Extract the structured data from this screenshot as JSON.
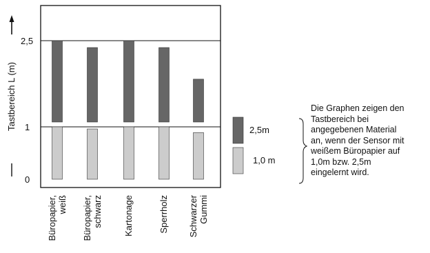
{
  "chart_data": {
    "type": "bar",
    "ylabel": "Tastbereich L (m)",
    "y_ticks": [
      {
        "value": 0,
        "label": "0"
      },
      {
        "value": 1,
        "label": "1"
      },
      {
        "value": 2.5,
        "label": "2,5"
      }
    ],
    "ylim": [
      0,
      2.5
    ],
    "grid": "horizontal lines at 1 and 2,5",
    "categories": [
      [
        "Büropapier,",
        "weiß"
      ],
      [
        "Büropapier,",
        "schwarz"
      ],
      [
        "Kartonage"
      ],
      [
        "Sperrholz"
      ],
      [
        "Schwarzer",
        "Gummi"
      ]
    ],
    "series": [
      {
        "name": "2,5m",
        "color": "#666666",
        "range": [
          1,
          2.5
        ],
        "values": [
          2.5,
          2.38,
          2.5,
          2.38,
          1.83
        ]
      },
      {
        "name": "1,0 m",
        "color": "#cccccc",
        "range": [
          0,
          1
        ],
        "values": [
          1.0,
          0.96,
          1.0,
          1.0,
          0.89
        ]
      }
    ],
    "legend_position": "right"
  },
  "note": {
    "lines": [
      "Die Graphen zeigen den",
      "Tastbereich bei",
      "angegebenen Material",
      "an, wenn der Sensor mit",
      "weißem Büropapier auf",
      "1,0m bzw. 2,5m",
      "eingelernt wird."
    ]
  }
}
